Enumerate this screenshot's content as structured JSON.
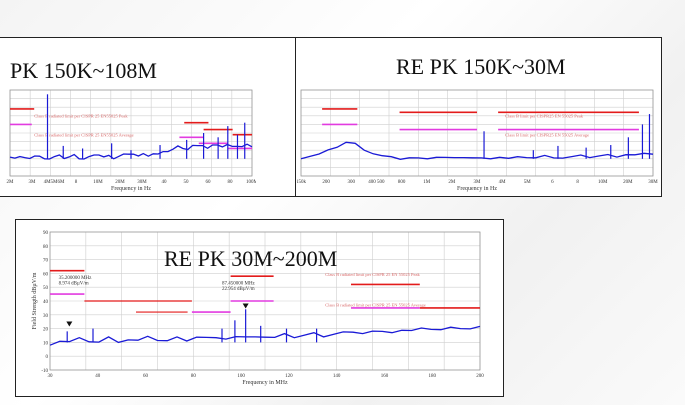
{
  "colors": {
    "trace": "#1a1ad6",
    "limit_pk": "#e31b1b",
    "limit_av": "#e23be0",
    "grid": "#cfcfcf",
    "frame": "#222222",
    "annotation": "#d86a6a"
  },
  "chart_data": [
    {
      "id": "left",
      "type": "line",
      "title": "PK 150K~108M",
      "xlabel": "Frequency in Hz",
      "x_tick_labels": [
        "2M",
        "3M",
        "4M5M6M",
        "8",
        "10M",
        "20M",
        "30M",
        "40",
        "50",
        "60",
        "80",
        "100M"
      ],
      "limit_labels": [
        "Class B radiated limit per CISPR 25 EN55025 Peak",
        "Class B radiated limit per CISPR 25 EN55025 Average"
      ],
      "series": [
        {
          "values": [
            0.22,
            0.2,
            0.21,
            0.19,
            0.2,
            0.22,
            0.21,
            0.2,
            0.19,
            0.21,
            0.22,
            0.2,
            0.21,
            0.23,
            0.2,
            0.19,
            0.21,
            0.22,
            0.24,
            0.21,
            0.22,
            0.2,
            0.22,
            0.24,
            0.23,
            0.25,
            0.22,
            0.24,
            0.23,
            0.25,
            0.24,
            0.26,
            0.28,
            0.3,
            0.33,
            0.32,
            0.3,
            0.34,
            0.33,
            0.35,
            0.31,
            0.34,
            0.36,
            0.33,
            0.35,
            0.32,
            0.34,
            0.33,
            0.35,
            0.34
          ]
        }
      ],
      "peaks": [
        [
          0.155,
          0.95
        ],
        [
          0.22,
          0.35
        ],
        [
          0.3,
          0.32
        ],
        [
          0.42,
          0.38
        ],
        [
          0.5,
          0.3
        ],
        [
          0.62,
          0.36
        ],
        [
          0.73,
          0.42
        ],
        [
          0.8,
          0.5
        ],
        [
          0.86,
          0.45
        ],
        [
          0.9,
          0.58
        ],
        [
          0.94,
          0.48
        ],
        [
          0.97,
          0.62
        ]
      ],
      "pk_limits": [
        [
          0.0,
          0.1,
          0.78
        ],
        [
          0.72,
          0.82,
          0.62
        ],
        [
          0.8,
          0.92,
          0.54
        ],
        [
          0.92,
          1.0,
          0.48
        ]
      ],
      "av_limits": [
        [
          0.0,
          0.09,
          0.6
        ],
        [
          0.7,
          0.8,
          0.45
        ],
        [
          0.78,
          0.9,
          0.38
        ],
        [
          0.9,
          1.0,
          0.32
        ]
      ]
    },
    {
      "id": "right",
      "type": "line",
      "title": "RE PK 150K~30M",
      "xlabel": "Frequency in Hz",
      "x_tick_labels": [
        "150k",
        "200",
        "300",
        "400 500",
        "800",
        "1M",
        "2M",
        "3M",
        "4M",
        "5M",
        "6",
        "8",
        "10M",
        "20M",
        "30M"
      ],
      "limit_labels": [
        "Class B limit per CISPR25 EN 55025 Peak",
        "Class B limit per CISPR25 EN 55025 Average"
      ],
      "series": [
        {
          "values": [
            0.2,
            0.22,
            0.24,
            0.28,
            0.33,
            0.38,
            0.36,
            0.3,
            0.25,
            0.22,
            0.2,
            0.19,
            0.2,
            0.19,
            0.2,
            0.21,
            0.2,
            0.19,
            0.21,
            0.2,
            0.19,
            0.2,
            0.21,
            0.19,
            0.2,
            0.21,
            0.2,
            0.22,
            0.21,
            0.2,
            0.21,
            0.22,
            0.21,
            0.22,
            0.23,
            0.22,
            0.24,
            0.23,
            0.24,
            0.25
          ]
        }
      ],
      "peaks": [
        [
          0.52,
          0.52
        ],
        [
          0.66,
          0.3
        ],
        [
          0.73,
          0.35
        ],
        [
          0.81,
          0.33
        ],
        [
          0.88,
          0.36
        ],
        [
          0.93,
          0.45
        ],
        [
          0.97,
          0.6
        ],
        [
          0.99,
          0.72
        ]
      ],
      "pk_limits": [
        [
          0.06,
          0.16,
          0.78
        ],
        [
          0.28,
          0.5,
          0.74
        ],
        [
          0.56,
          0.96,
          0.74
        ]
      ],
      "av_limits": [
        [
          0.06,
          0.16,
          0.6
        ],
        [
          0.28,
          0.5,
          0.54
        ],
        [
          0.56,
          0.96,
          0.54
        ]
      ]
    },
    {
      "id": "bottom",
      "type": "line",
      "title": "RE PK 30M~200M",
      "xlabel": "Frequency in MHz",
      "ylabel": "Field Strength dBµV/m",
      "x_tick_labels": [
        "30",
        "40",
        "60",
        "80",
        "100",
        "120",
        "140",
        "160",
        "180",
        "200"
      ],
      "y_tick_labels": [
        "-10",
        "0",
        "10",
        "20",
        "30",
        "40",
        "50",
        "60",
        "70",
        "80",
        "90"
      ],
      "annotations": [
        "35.200000 MHz",
        "8.974 dBµV/m",
        "87.450000 MHz",
        "22.954 dBµV/m"
      ],
      "limit_labels": [
        "Class B radiated limit per CISPR 25 EN 55025 Peak",
        "Class B radiated limit per CISPR 25 EN 55025 Average"
      ],
      "series": [
        {
          "values": [
            0.18,
            0.2,
            0.19,
            0.21,
            0.2,
            0.19,
            0.22,
            0.2,
            0.21,
            0.2,
            0.22,
            0.21,
            0.2,
            0.22,
            0.21,
            0.23,
            0.22,
            0.21,
            0.22,
            0.23,
            0.22,
            0.24,
            0.23,
            0.22,
            0.24,
            0.23,
            0.24,
            0.25,
            0.24,
            0.25,
            0.26,
            0.25,
            0.26,
            0.27,
            0.26,
            0.27,
            0.28,
            0.27,
            0.28,
            0.29,
            0.28,
            0.29,
            0.3,
            0.29,
            0.3
          ]
        }
      ],
      "peaks": [
        [
          0.04,
          0.28
        ],
        [
          0.1,
          0.3
        ],
        [
          0.4,
          0.3
        ],
        [
          0.43,
          0.36
        ],
        [
          0.455,
          0.44
        ],
        [
          0.49,
          0.32
        ],
        [
          0.55,
          0.3
        ],
        [
          0.62,
          0.3
        ]
      ],
      "markers": [
        [
          0.045,
          0.33
        ],
        [
          0.455,
          0.46
        ]
      ],
      "pk_limits": [
        [
          0.0,
          0.08,
          0.72
        ],
        [
          0.42,
          0.52,
          0.68
        ],
        [
          0.7,
          0.86,
          0.62
        ],
        [
          0.86,
          1.0,
          0.45
        ]
      ],
      "av_limits": [
        [
          0.0,
          0.08,
          0.55
        ],
        [
          0.33,
          0.42,
          0.42
        ],
        [
          0.42,
          0.52,
          0.5
        ],
        [
          0.7,
          0.86,
          0.45
        ]
      ],
      "mid_limits": [
        [
          0.08,
          0.33,
          0.5
        ],
        [
          0.2,
          0.32,
          0.42
        ]
      ]
    }
  ]
}
